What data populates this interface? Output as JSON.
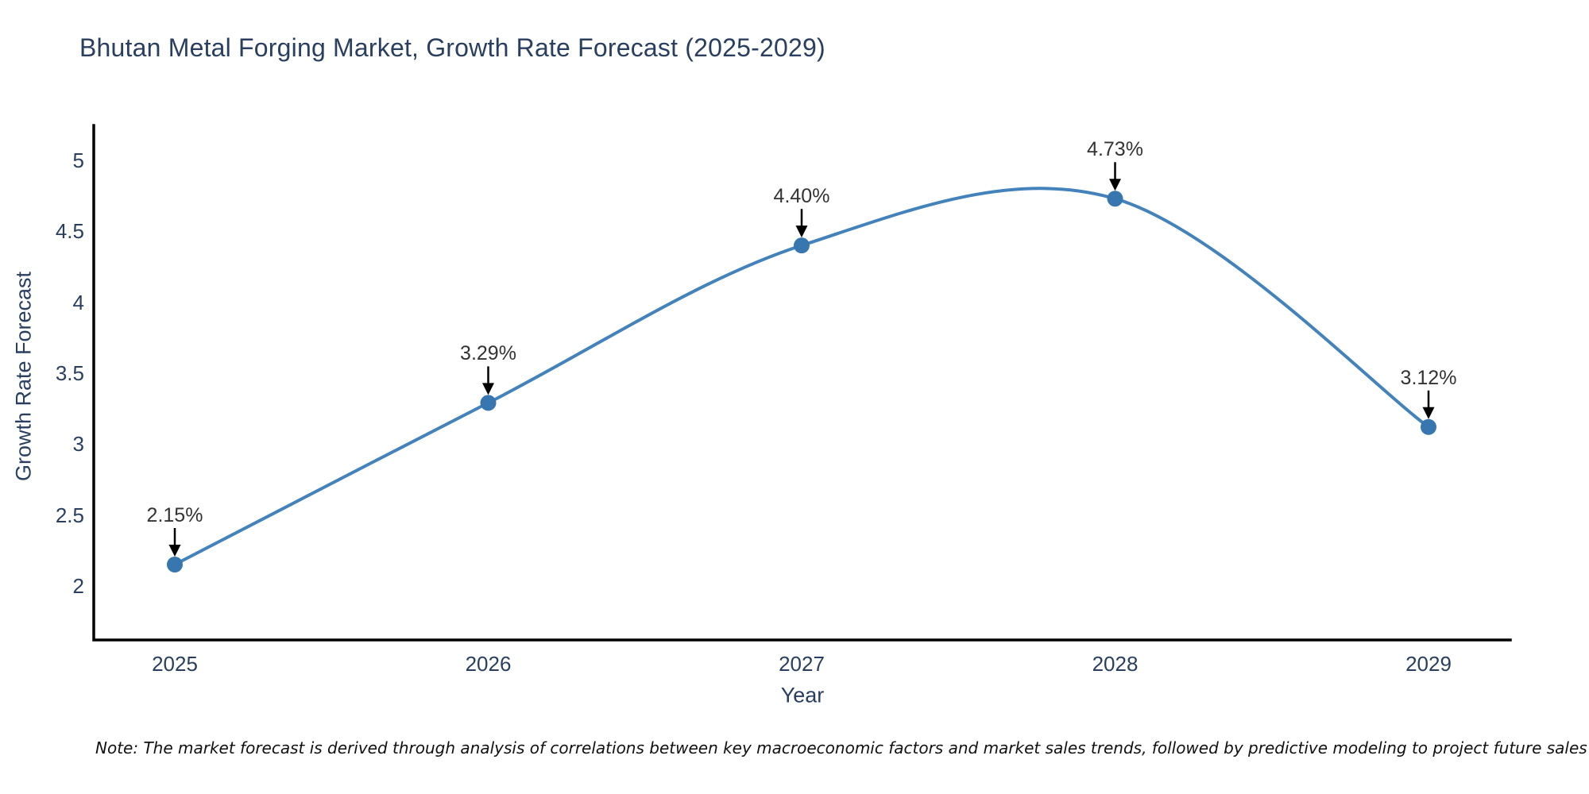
{
  "title": "Bhutan Metal Forging Market, Growth Rate Forecast (2025-2029)",
  "note": "Note: The market forecast is derived through analysis of correlations between key macroeconomic factors and market sales trends, followed by predictive modeling to project future sales",
  "chart_data": {
    "type": "line",
    "title": "Bhutan Metal Forging Market, Growth Rate Forecast (2025-2029)",
    "xlabel": "Year",
    "ylabel": "Growth Rate Forecast",
    "categories": [
      "2025",
      "2026",
      "2027",
      "2028",
      "2029"
    ],
    "values": [
      2.15,
      3.29,
      4.4,
      4.73,
      3.12
    ],
    "point_labels": [
      "2.15%",
      "3.29%",
      "4.40%",
      "4.73%",
      "3.12%"
    ],
    "series": [
      {
        "name": "Growth Rate Forecast",
        "values": [
          2.15,
          3.29,
          4.4,
          4.73,
          3.12
        ]
      }
    ],
    "yticks": [
      "5",
      "4.5",
      "4",
      "3.5",
      "3",
      "2.5",
      "2"
    ],
    "ytick_values": [
      5,
      4.5,
      4,
      3.5,
      3,
      2.5,
      2
    ],
    "ylim": [
      1.6,
      5.25
    ],
    "grid": false,
    "legend_position": "none",
    "curve_style": "smooth-spline",
    "annotation_style": "down-arrow",
    "line_color": "#4382bb",
    "marker_color": "#3776ae",
    "arrow_color": "#000000",
    "axis_line_color": "#000000",
    "title_color": "#2a3f5f",
    "tick_color": "#2a3f5f",
    "annotation_text_color": "#333333"
  }
}
